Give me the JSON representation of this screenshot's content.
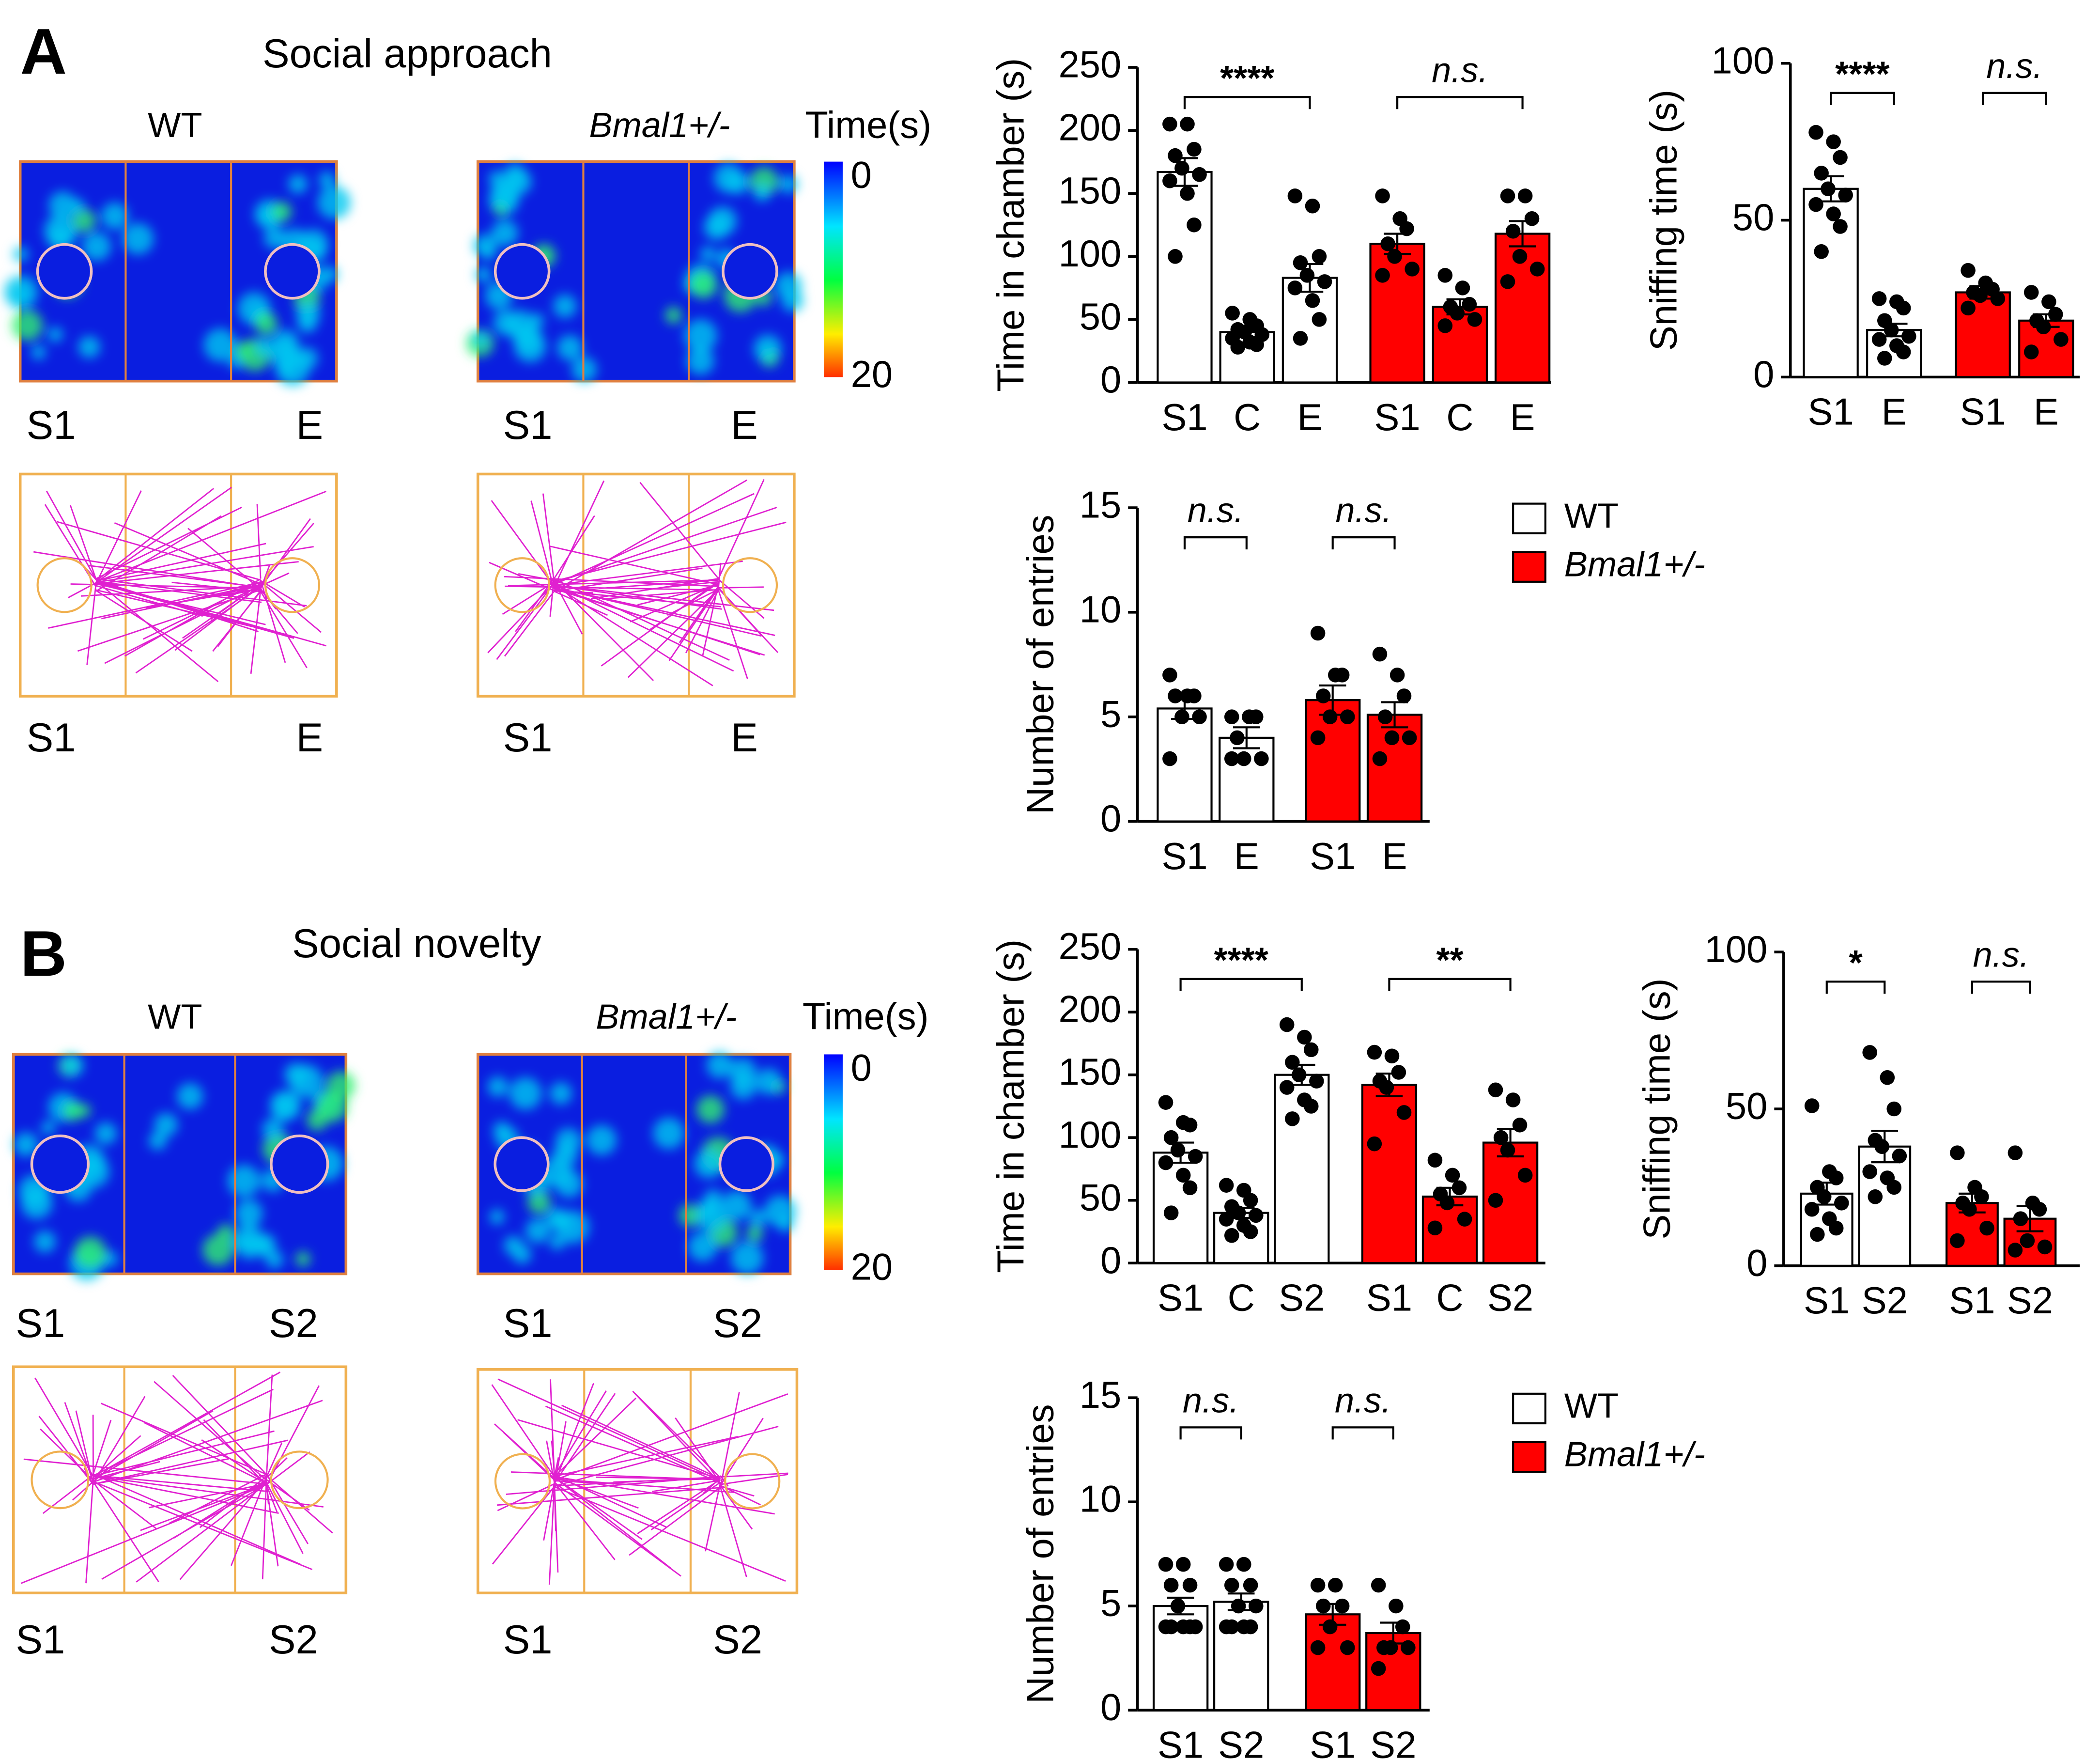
{
  "panels": [
    {
      "label": "A",
      "title": "Social approach",
      "colorbar": {
        "title": "Time(s)",
        "ticks": [
          0,
          20
        ]
      },
      "arenas": [
        {
          "genotype": "WT",
          "zones": [
            "S1",
            "E"
          ]
        },
        {
          "genotype": "Bmal1+/-",
          "zones": [
            "S1",
            "E"
          ]
        }
      ]
    },
    {
      "label": "B",
      "title": "Social  novelty",
      "colorbar": {
        "title": "Time(s)",
        "ticks": [
          0,
          20
        ]
      },
      "arenas": [
        {
          "genotype": "WT",
          "zones": [
            "S1",
            "S2"
          ]
        },
        {
          "genotype": "Bmal1+/-",
          "zones": [
            "S1",
            "S2"
          ]
        }
      ]
    }
  ],
  "chart_data": [
    {
      "type": "bar",
      "ylabel": "Time in chamber (s)",
      "categories": [
        "S1",
        "C",
        "E"
      ],
      "ylim": [
        0,
        250
      ],
      "yticks": [
        0,
        50,
        100,
        150,
        200,
        250
      ],
      "significance": [
        "****",
        "n.s."
      ],
      "series": [
        {
          "color": "#ffffff",
          "values": [
            167,
            40,
            83
          ],
          "errors": [
            11,
            4,
            11
          ],
          "points": [
            [
              205,
              205,
              185,
              180,
              170,
              165,
              160,
              150,
              125,
              100
            ],
            [
              55,
              50,
              45,
              42,
              40,
              38,
              35,
              32,
              30,
              28
            ],
            [
              148,
              140,
              100,
              95,
              85,
              80,
              75,
              65,
              50,
              35
            ]
          ]
        },
        {
          "color": "#ff0000",
          "values": [
            110,
            60,
            118
          ],
          "errors": [
            8,
            6,
            10
          ],
          "points": [
            [
              148,
              130,
              122,
              110,
              100,
              90,
              85
            ],
            [
              85,
              75,
              62,
              60,
              55,
              50,
              45
            ],
            [
              148,
              148,
              130,
              120,
              100,
              90,
              80
            ]
          ]
        }
      ]
    },
    {
      "type": "bar",
      "ylabel": "Sniffing time (s)",
      "categories": [
        "S1",
        "E"
      ],
      "ylim": [
        0,
        100
      ],
      "yticks": [
        0,
        50,
        100
      ],
      "significance": [
        "****",
        "n.s."
      ],
      "series": [
        {
          "color": "#ffffff",
          "values": [
            60,
            15
          ],
          "errors": [
            4,
            2
          ],
          "points": [
            [
              78,
              75,
              70,
              65,
              60,
              58,
              55,
              52,
              48,
              40
            ],
            [
              25,
              24,
              22,
              18,
              15,
              13,
              12,
              10,
              8,
              6
            ]
          ]
        },
        {
          "color": "#ff0000",
          "values": [
            27,
            18
          ],
          "errors": [
            2,
            2
          ],
          "points": [
            [
              34,
              30,
              28,
              27,
              26,
              25,
              22
            ],
            [
              27,
              24,
              20,
              18,
              16,
              12,
              8
            ]
          ]
        }
      ]
    },
    {
      "type": "bar",
      "ylabel": "Number of entries",
      "categories": [
        "S1",
        "E"
      ],
      "ylim": [
        0,
        15
      ],
      "yticks": [
        0,
        5,
        10,
        15
      ],
      "significance": [
        "n.s.",
        "n.s."
      ],
      "legend": "right",
      "series": [
        {
          "name": "WT",
          "color": "#ffffff",
          "values": [
            5.4,
            4
          ],
          "errors": [
            0.5,
            0.5
          ],
          "points": [
            [
              7,
              6,
              6,
              6,
              5,
              5,
              3
            ],
            [
              5,
              5,
              5,
              4,
              3,
              3,
              3
            ]
          ]
        },
        {
          "name": "Bmal1+/-",
          "color": "#ff0000",
          "values": [
            5.8,
            5.1
          ],
          "errors": [
            0.7,
            0.6
          ],
          "points": [
            [
              9,
              7,
              7,
              6,
              5,
              5,
              4
            ],
            [
              8,
              7,
              6,
              5,
              4,
              4,
              3
            ]
          ]
        }
      ]
    },
    {
      "type": "bar",
      "ylabel": "Time in chamber (s)",
      "categories": [
        "S1",
        "C",
        "S2"
      ],
      "ylim": [
        0,
        250
      ],
      "yticks": [
        0,
        50,
        100,
        150,
        200,
        250
      ],
      "significance": [
        "****",
        "**"
      ],
      "series": [
        {
          "color": "#ffffff",
          "values": [
            88,
            40,
            150
          ],
          "errors": [
            8,
            4,
            8
          ],
          "points": [
            [
              128,
              112,
              110,
              100,
              90,
              85,
              80,
              70,
              60,
              40
            ],
            [
              62,
              58,
              50,
              45,
              40,
              38,
              35,
              30,
              25,
              22
            ],
            [
              190,
              180,
              170,
              160,
              150,
              145,
              140,
              130,
              125,
              115
            ]
          ]
        },
        {
          "color": "#ff0000",
          "values": [
            142,
            53,
            96
          ],
          "errors": [
            9,
            7,
            11
          ],
          "points": [
            [
              168,
              165,
              152,
              145,
              140,
              120,
              95
            ],
            [
              82,
              70,
              60,
              55,
              48,
              35,
              28
            ],
            [
              138,
              130,
              110,
              100,
              90,
              70,
              50
            ]
          ]
        }
      ]
    },
    {
      "type": "bar",
      "ylabel": "Sniffing time (s)",
      "categories": [
        "S1",
        "S2"
      ],
      "ylim": [
        0,
        100
      ],
      "yticks": [
        0,
        50,
        100
      ],
      "significance": [
        "*",
        "n.s."
      ],
      "series": [
        {
          "color": "#ffffff",
          "values": [
            23,
            38
          ],
          "errors": [
            3.5,
            5
          ],
          "points": [
            [
              51,
              30,
              28,
              25,
              22,
              20,
              18,
              15,
              12,
              10
            ],
            [
              68,
              60,
              50,
              40,
              38,
              35,
              30,
              28,
              25,
              22
            ]
          ]
        },
        {
          "color": "#ff0000",
          "values": [
            20,
            15
          ],
          "errors": [
            3,
            4
          ],
          "points": [
            [
              36,
              25,
              22,
              20,
              18,
              12,
              8
            ],
            [
              36,
              20,
              18,
              15,
              8,
              6,
              5
            ]
          ]
        }
      ]
    },
    {
      "type": "bar",
      "ylabel": "Number of entries",
      "categories": [
        "S1",
        "S2"
      ],
      "ylim": [
        0,
        15
      ],
      "yticks": [
        0,
        5,
        10,
        15
      ],
      "significance": [
        "n.s.",
        "n.s."
      ],
      "legend": "right",
      "series": [
        {
          "name": "WT",
          "color": "#ffffff",
          "values": [
            5,
            5.2
          ],
          "errors": [
            0.4,
            0.4
          ],
          "points": [
            [
              7,
              7,
              6,
              6,
              5,
              4,
              4,
              4,
              4,
              4
            ],
            [
              7,
              7,
              6,
              6,
              5,
              5,
              4,
              4,
              4,
              4
            ]
          ]
        },
        {
          "name": "Bmal1+/-",
          "color": "#ff0000",
          "values": [
            4.6,
            3.7
          ],
          "errors": [
            0.5,
            0.5
          ],
          "points": [
            [
              6,
              6,
              5,
              5,
              4,
              3,
              3
            ],
            [
              6,
              5,
              4,
              3,
              3,
              3,
              2
            ]
          ]
        }
      ]
    }
  ]
}
